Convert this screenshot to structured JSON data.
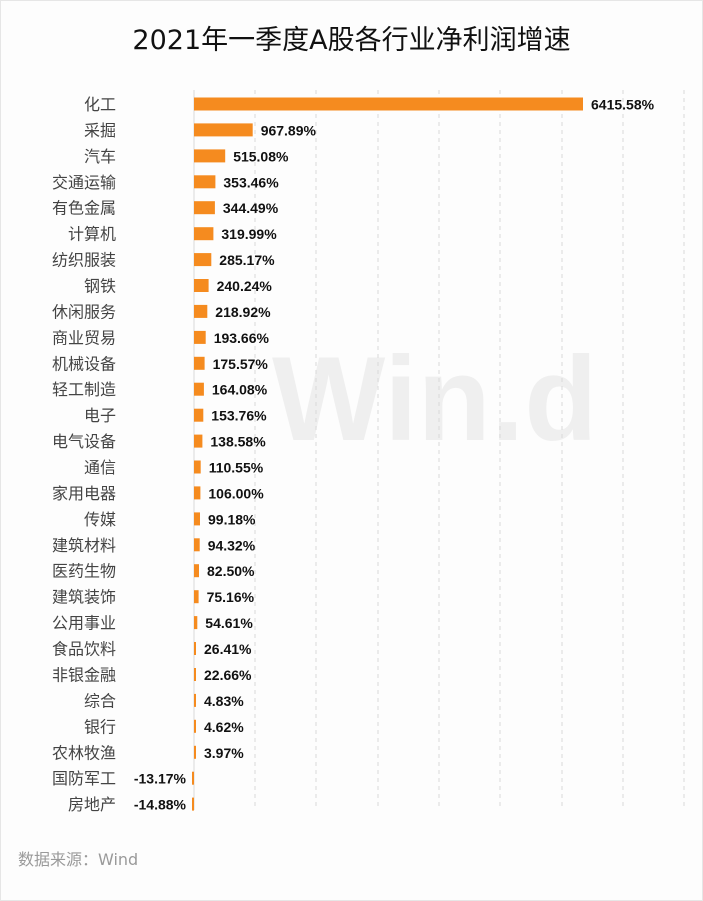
{
  "title": "2021年一季度A股各行业净利润增速",
  "source": "数据来源：Wind",
  "watermark": "Win.d",
  "colors": {
    "bar": "#f58b1f",
    "grid": "#d9d9d9",
    "label": "#111111",
    "category": "#444444"
  },
  "chart_data": {
    "type": "bar",
    "orientation": "horizontal",
    "title": "2021年一季度A股各行业净利润增速",
    "grid": true,
    "xlim": [
      -100,
      7000
    ],
    "categories": [
      "化工",
      "采掘",
      "汽车",
      "交通运输",
      "有色金属",
      "计算机",
      "纺织服装",
      "钢铁",
      "休闲服务",
      "商业贸易",
      "机械设备",
      "轻工制造",
      "电子",
      "电气设备",
      "通信",
      "家用电器",
      "传媒",
      "建筑材料",
      "医药生物",
      "建筑装饰",
      "公用事业",
      "食品饮料",
      "非银金融",
      "综合",
      "银行",
      "农林牧渔",
      "国防军工",
      "房地产"
    ],
    "values": [
      6415.58,
      967.89,
      515.08,
      353.46,
      344.49,
      319.99,
      285.17,
      240.24,
      218.92,
      193.66,
      175.57,
      164.08,
      153.76,
      138.58,
      110.55,
      106.0,
      99.18,
      94.32,
      82.5,
      75.16,
      54.61,
      26.41,
      22.66,
      4.83,
      4.62,
      3.97,
      -13.17,
      -14.88
    ],
    "data_labels": [
      "6415.58%",
      "967.89%",
      "515.08%",
      "353.46%",
      "344.49%",
      "319.99%",
      "285.17%",
      "240.24%",
      "218.92%",
      "193.66%",
      "175.57%",
      "164.08%",
      "153.76%",
      "138.58%",
      "110.55%",
      "106.00%",
      "99.18%",
      "94.32%",
      "82.50%",
      "75.16%",
      "54.61%",
      "26.41%",
      "22.66%",
      "4.83%",
      "4.62%",
      "3.97%",
      "-13.17%",
      "-14.88%"
    ]
  }
}
